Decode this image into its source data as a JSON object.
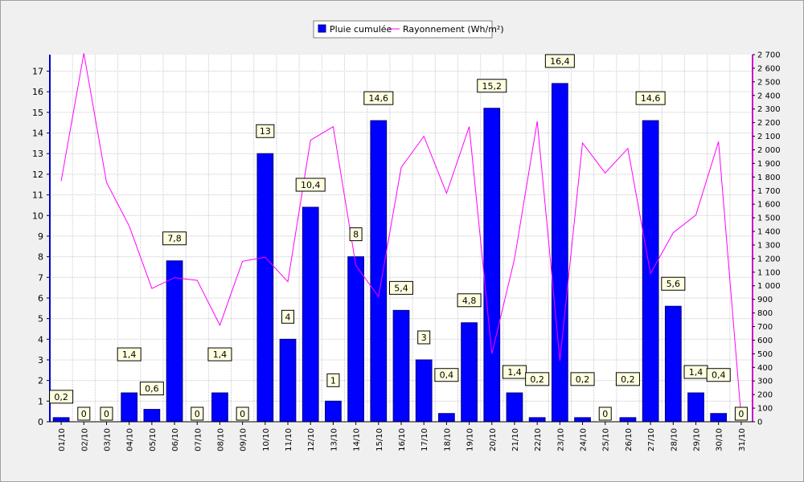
{
  "chart_data": {
    "type": "bar",
    "categories": [
      "01/10",
      "02/10",
      "03/10",
      "04/10",
      "05/10",
      "06/10",
      "07/10",
      "08/10",
      "09/10",
      "10/10",
      "11/10",
      "12/10",
      "13/10",
      "14/10",
      "15/10",
      "16/10",
      "17/10",
      "18/10",
      "19/10",
      "20/10",
      "21/10",
      "22/10",
      "23/10",
      "24/10",
      "25/10",
      "26/10",
      "27/10",
      "28/10",
      "29/10",
      "30/10",
      "31/10"
    ],
    "series": [
      {
        "name": "Pluie cumulée",
        "type": "bar",
        "axis": "left",
        "color": "#0000ff",
        "values": [
          0.2,
          0,
          0,
          1.4,
          0.6,
          7.8,
          0,
          1.4,
          0,
          13,
          4,
          10.4,
          1,
          8,
          14.6,
          5.4,
          3,
          0.4,
          4.8,
          15.2,
          1.4,
          0.2,
          16.4,
          0.2,
          0,
          0.2,
          14.6,
          5.6,
          1.4,
          0.4,
          0
        ],
        "labels": [
          "0,2",
          "0",
          "0",
          "1,4",
          "0,6",
          "7,8",
          "0",
          "1,4",
          "0",
          "13",
          "4",
          "10,4",
          "1",
          "8",
          "14,6",
          "5,4",
          "3",
          "0,4",
          "4,8",
          "15,2",
          "1,4",
          "0,2",
          "16,4",
          "0,2",
          "0",
          "0,2",
          "14,6",
          "5,6",
          "1,4",
          "0,4",
          "0"
        ]
      },
      {
        "name": "Rayonnement (Wh/m²)",
        "type": "line",
        "axis": "right",
        "color": "#ff00ff",
        "values": [
          1770,
          2710,
          1760,
          1440,
          980,
          1060,
          1040,
          710,
          1180,
          1210,
          1030,
          2070,
          2170,
          1150,
          920,
          1870,
          2100,
          1680,
          2170,
          500,
          1200,
          2210,
          450,
          2050,
          1830,
          2010,
          1090,
          1390,
          1520,
          2060,
          30
        ]
      }
    ],
    "y_left": {
      "min": 0,
      "max": 17.8,
      "ticks": [
        "0",
        "1",
        "2",
        "3",
        "4",
        "5",
        "6",
        "7",
        "8",
        "9",
        "10",
        "11",
        "12",
        "13",
        "14",
        "15",
        "16",
        "17"
      ]
    },
    "y_right": {
      "min": 0,
      "max": 2700,
      "ticks": [
        "0",
        "100",
        "200",
        "300",
        "400",
        "500",
        "600",
        "700",
        "800",
        "900",
        "1 000",
        "1 100",
        "1 200",
        "1 300",
        "1 400",
        "1 500",
        "1 600",
        "1 700",
        "1 800",
        "1 900",
        "2 000",
        "2 100",
        "2 200",
        "2 300",
        "2 400",
        "2 500",
        "2 600",
        "2 700"
      ]
    },
    "grid": true,
    "legend_position": "top-center"
  }
}
